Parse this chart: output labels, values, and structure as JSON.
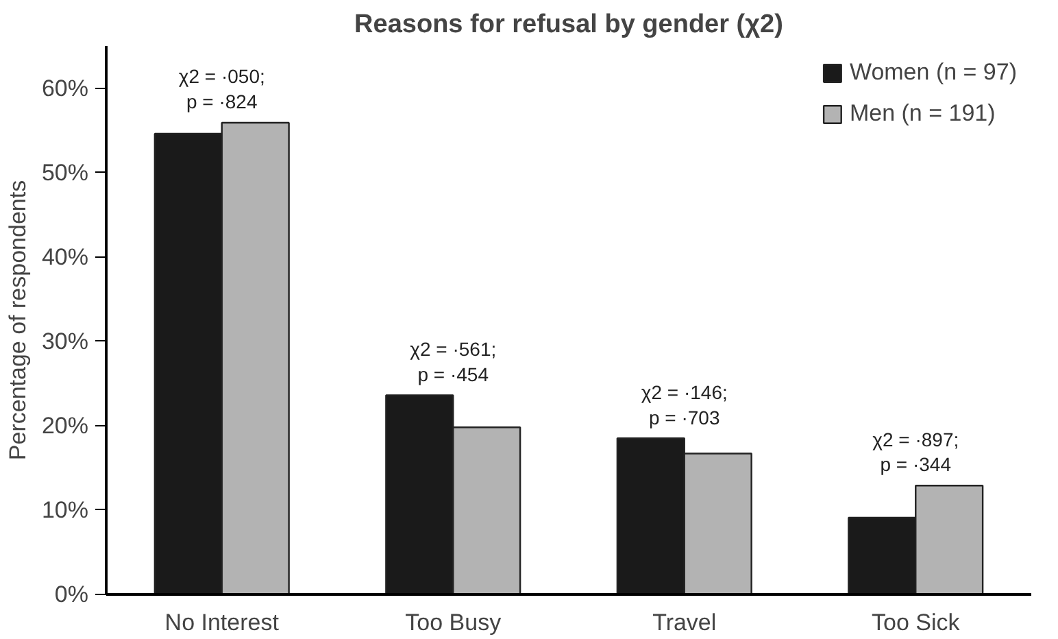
{
  "chart_data": {
    "type": "bar",
    "title": "Reasons for refusal by gender (χ2)",
    "ylabel": "Percentage of respondents",
    "categories": [
      "No Interest",
      "Too Busy",
      "Travel",
      "Too Sick"
    ],
    "series": [
      {
        "name": "Women (n = 97)",
        "color": "#1a1a1a",
        "values": [
          54.6,
          23.6,
          18.5,
          9.1
        ]
      },
      {
        "name": "Men (n = 191)",
        "color": "#b3b3b3",
        "values": [
          55.9,
          19.8,
          16.7,
          12.9
        ]
      }
    ],
    "ylim": [
      0,
      65
    ],
    "yticks": [
      {
        "value": 0,
        "label": "0%"
      },
      {
        "value": 10,
        "label": "10%"
      },
      {
        "value": 20,
        "label": "20%"
      },
      {
        "value": 30,
        "label": "30%"
      },
      {
        "value": 40,
        "label": "40%"
      },
      {
        "value": 50,
        "label": "50%"
      },
      {
        "value": 60,
        "label": "60%"
      }
    ],
    "annotations": [
      {
        "text": "χ2 = ·050;\np = ·824",
        "x": "No Interest",
        "y": 55.9
      },
      {
        "text": "χ2 = ·561;\np = ·454",
        "x": "Too Busy",
        "y": 23.6
      },
      {
        "text": "χ2 = ·146;\np = ·703",
        "x": "Travel",
        "y": 18.5
      },
      {
        "text": "χ2 = ·897;\np = ·344",
        "x": "Too Sick",
        "y": 12.9
      }
    ],
    "grid": false,
    "legend": "top right"
  }
}
